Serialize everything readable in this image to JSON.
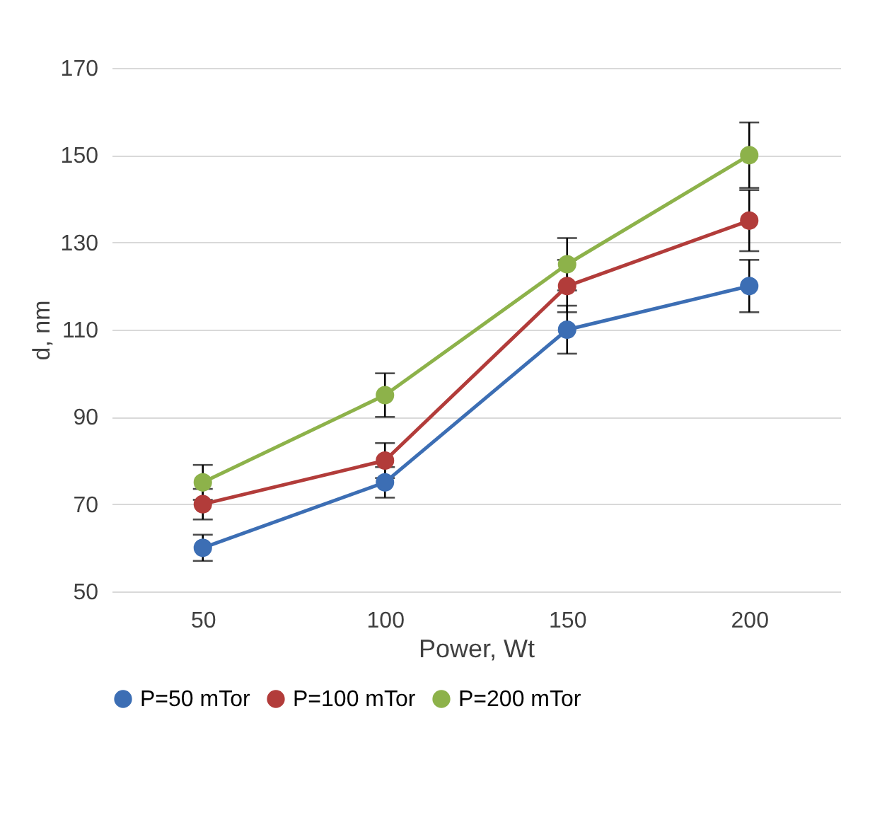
{
  "chart_data": {
    "type": "line",
    "xlabel": "Power, Wt",
    "ylabel": "d, nm",
    "categories": [
      "50",
      "100",
      "150",
      "200"
    ],
    "series": [
      {
        "name": "P=50 mTor",
        "color": "#3c6eb4",
        "values": [
          60,
          75,
          110,
          120
        ],
        "errors": [
          3,
          3.5,
          5.5,
          6
        ]
      },
      {
        "name": "P=100 mTor",
        "color": "#b23c3a",
        "values": [
          70,
          80,
          120,
          135
        ],
        "errors": [
          3.5,
          4,
          6,
          7
        ]
      },
      {
        "name": "P=200 mTor",
        "color": "#8db24a",
        "values": [
          75,
          95,
          125,
          150
        ],
        "errors": [
          4,
          5,
          6,
          7.5
        ]
      }
    ],
    "ylim": [
      50,
      170
    ],
    "yticks": [
      50,
      70,
      90,
      110,
      130,
      150,
      170
    ],
    "grid": "y",
    "legend": "bottom",
    "marker": "circle",
    "line_style": "solid"
  }
}
